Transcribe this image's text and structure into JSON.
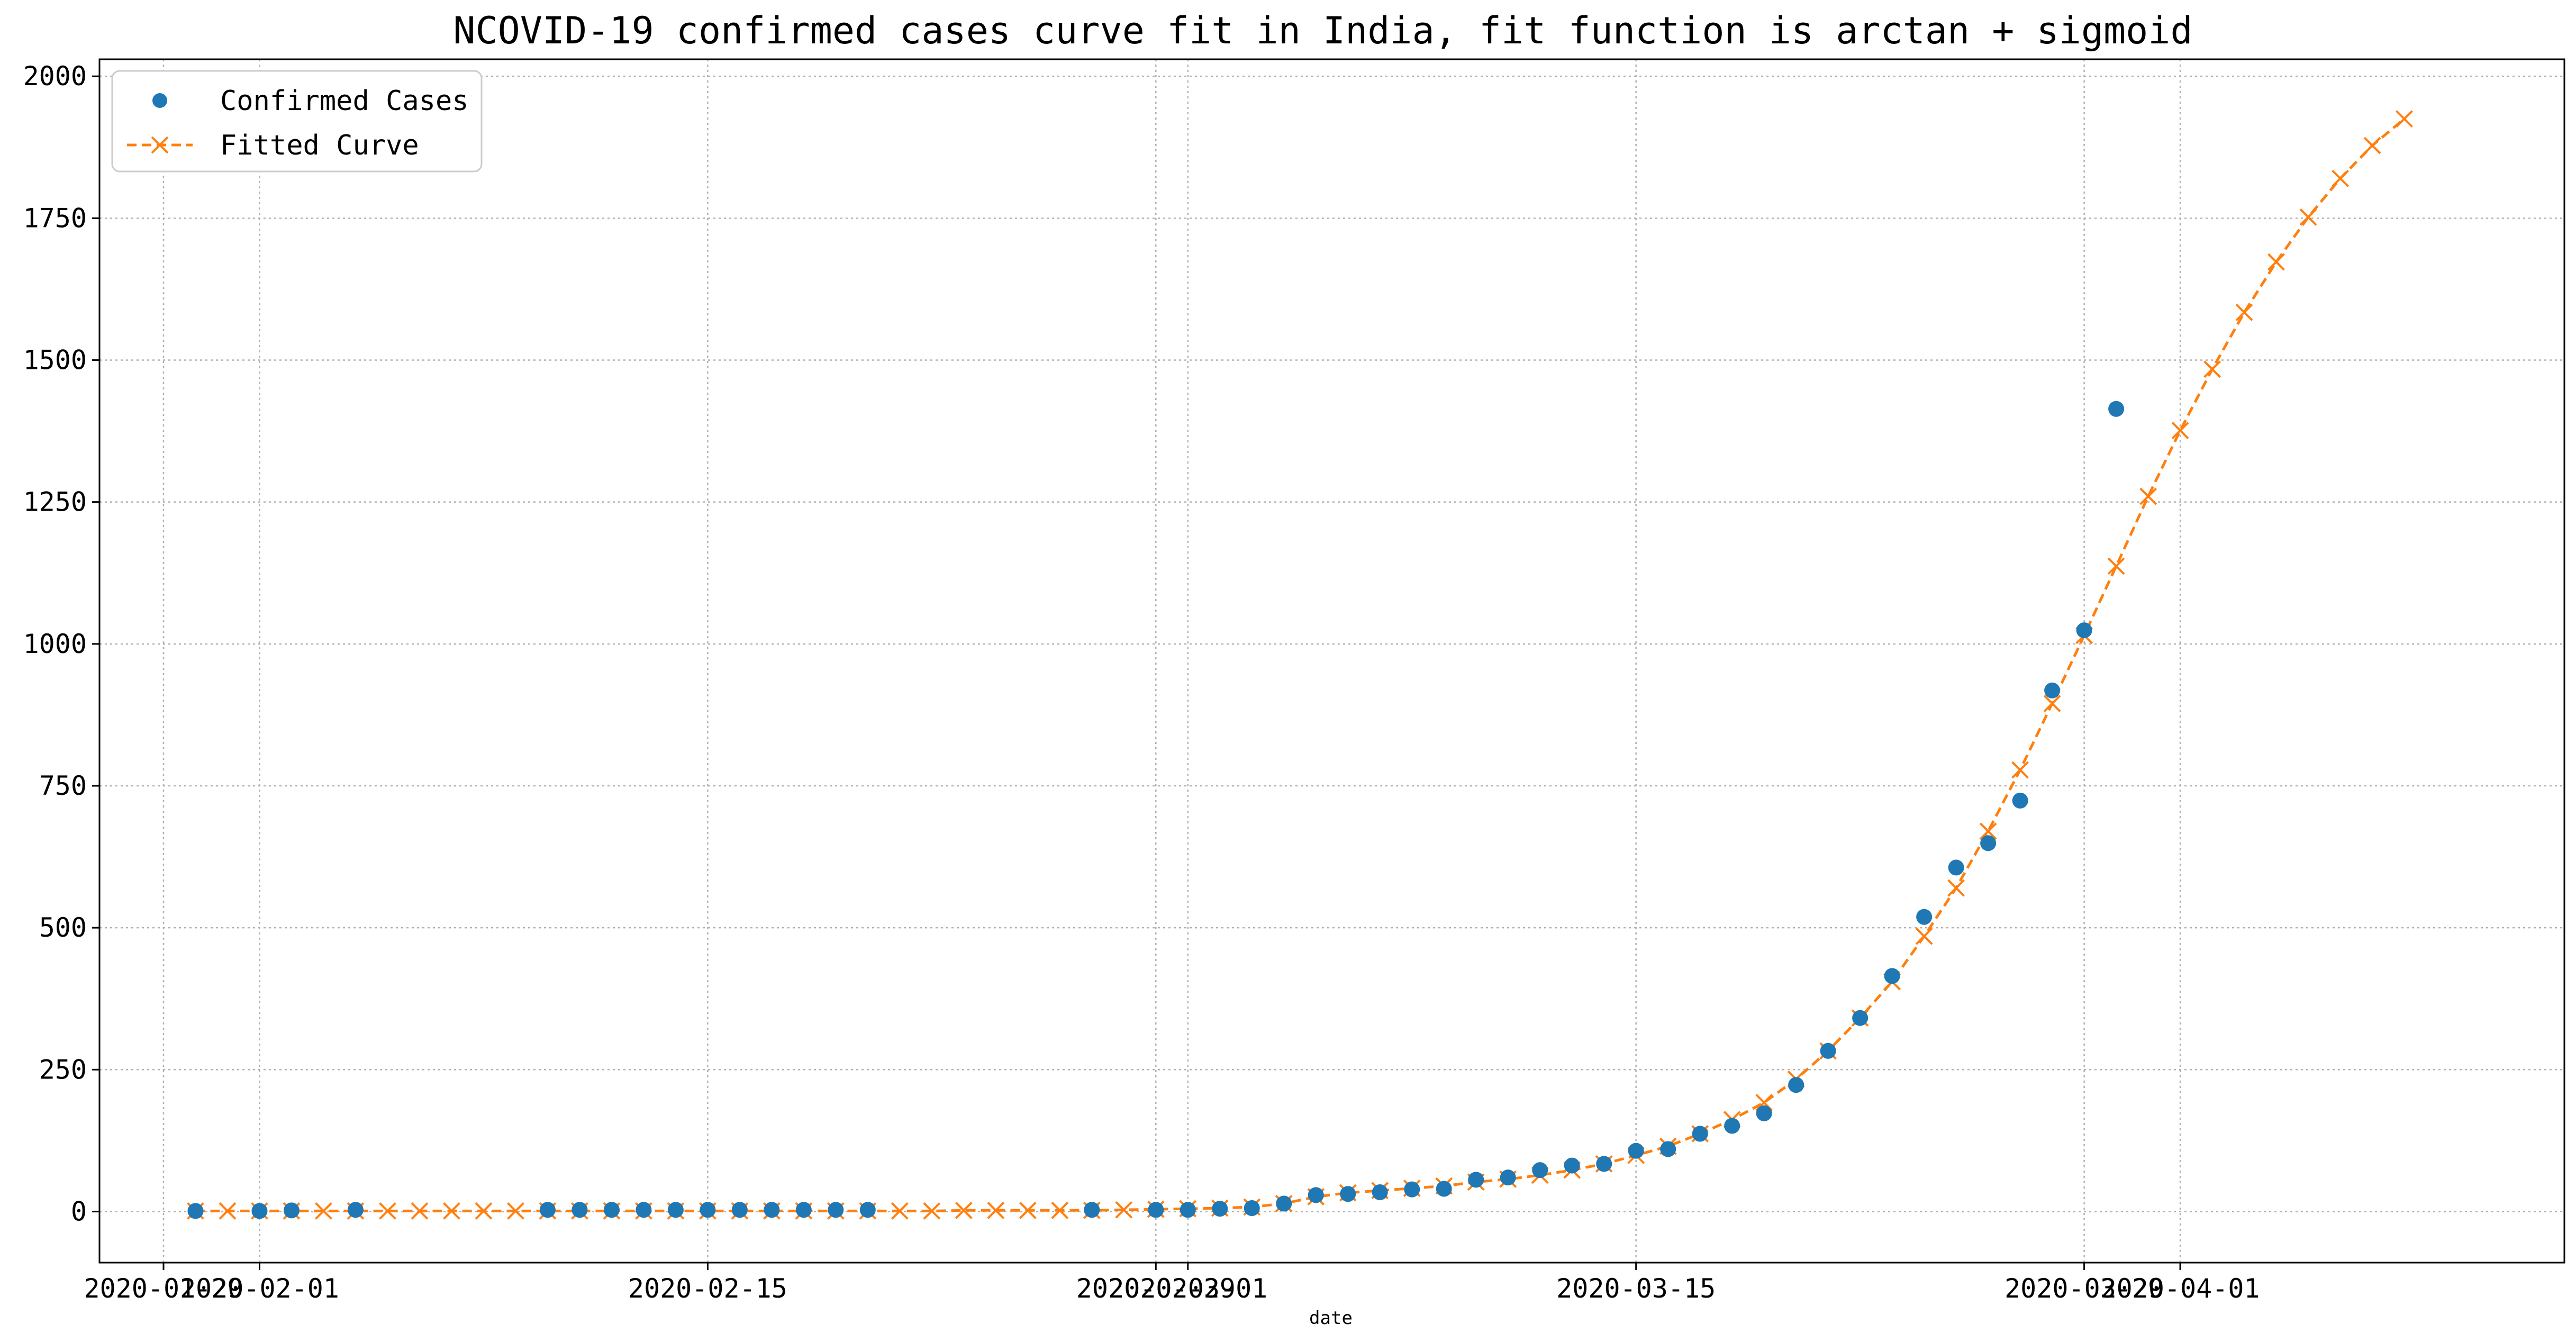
{
  "chart_data": {
    "type": "line",
    "title": "NCOVID-19 confirmed cases curve fit in India, fit function is arctan + sigmoid",
    "xlabel": "date",
    "ylabel": "",
    "ylim": [
      -90,
      2030
    ],
    "xlim": [
      "2020-01-27",
      "2020-04-13"
    ],
    "grid": true,
    "legend_position": "upper-left",
    "x_ticks": [
      {
        "date": "2020-01-29",
        "label": "2020-01-29"
      },
      {
        "date": "2020-02-01",
        "label": "2020-02-01"
      },
      {
        "date": "2020-02-15",
        "label": "2020-02-15"
      },
      {
        "date": "2020-02-29",
        "label": "2020-02-29"
      },
      {
        "date": "2020-03-01",
        "label": "2020-03-01"
      },
      {
        "date": "2020-03-15",
        "label": "2020-03-15"
      },
      {
        "date": "2020-03-29",
        "label": "2020-03-29"
      },
      {
        "date": "2020-04-01",
        "label": "2020-04-01"
      }
    ],
    "y_ticks": [
      0,
      250,
      500,
      750,
      1000,
      1250,
      1500,
      1750,
      2000
    ],
    "series": [
      {
        "name": "Confirmed Cases",
        "style": "markers",
        "color": "#1f77b4",
        "points": [
          [
            "2020-01-30",
            1
          ],
          [
            "2020-02-01",
            1
          ],
          [
            "2020-02-02",
            2
          ],
          [
            "2020-02-04",
            3
          ],
          [
            "2020-02-10",
            3
          ],
          [
            "2020-02-11",
            3
          ],
          [
            "2020-02-12",
            3
          ],
          [
            "2020-02-13",
            3
          ],
          [
            "2020-02-14",
            3
          ],
          [
            "2020-02-15",
            3
          ],
          [
            "2020-02-16",
            3
          ],
          [
            "2020-02-17",
            3
          ],
          [
            "2020-02-18",
            3
          ],
          [
            "2020-02-19",
            3
          ],
          [
            "2020-02-20",
            3
          ],
          [
            "2020-02-27",
            3
          ],
          [
            "2020-02-29",
            3
          ],
          [
            "2020-03-01",
            3
          ],
          [
            "2020-03-02",
            5
          ],
          [
            "2020-03-03",
            6
          ],
          [
            "2020-03-04",
            14
          ],
          [
            "2020-03-05",
            29
          ],
          [
            "2020-03-06",
            31
          ],
          [
            "2020-03-07",
            34
          ],
          [
            "2020-03-08",
            39
          ],
          [
            "2020-03-09",
            40
          ],
          [
            "2020-03-10",
            56
          ],
          [
            "2020-03-11",
            60
          ],
          [
            "2020-03-12",
            73
          ],
          [
            "2020-03-13",
            81
          ],
          [
            "2020-03-14",
            84
          ],
          [
            "2020-03-15",
            107
          ],
          [
            "2020-03-16",
            110
          ],
          [
            "2020-03-17",
            137
          ],
          [
            "2020-03-18",
            151
          ],
          [
            "2020-03-19",
            173
          ],
          [
            "2020-03-20",
            223
          ],
          [
            "2020-03-21",
            283
          ],
          [
            "2020-03-22",
            341
          ],
          [
            "2020-03-23",
            415
          ],
          [
            "2020-03-24",
            519
          ],
          [
            "2020-03-25",
            606
          ],
          [
            "2020-03-26",
            649
          ],
          [
            "2020-03-27",
            724
          ],
          [
            "2020-03-28",
            918
          ],
          [
            "2020-03-29",
            1024
          ],
          [
            "2020-03-30",
            1414
          ]
        ]
      },
      {
        "name": "Fitted Curve",
        "style": "dashed-line-x-markers",
        "color": "#ff7f0e",
        "points": [
          [
            "2020-01-30",
            1
          ],
          [
            "2020-01-31",
            1
          ],
          [
            "2020-02-01",
            1
          ],
          [
            "2020-02-02",
            1
          ],
          [
            "2020-02-03",
            1
          ],
          [
            "2020-02-04",
            1
          ],
          [
            "2020-02-05",
            1
          ],
          [
            "2020-02-06",
            1
          ],
          [
            "2020-02-07",
            1
          ],
          [
            "2020-02-08",
            1
          ],
          [
            "2020-02-09",
            1
          ],
          [
            "2020-02-10",
            1
          ],
          [
            "2020-02-11",
            1
          ],
          [
            "2020-02-12",
            1
          ],
          [
            "2020-02-13",
            1
          ],
          [
            "2020-02-14",
            1
          ],
          [
            "2020-02-15",
            1
          ],
          [
            "2020-02-16",
            1
          ],
          [
            "2020-02-17",
            1
          ],
          [
            "2020-02-18",
            1
          ],
          [
            "2020-02-19",
            1
          ],
          [
            "2020-02-20",
            1
          ],
          [
            "2020-02-21",
            1
          ],
          [
            "2020-02-22",
            1
          ],
          [
            "2020-02-23",
            2
          ],
          [
            "2020-02-24",
            2
          ],
          [
            "2020-02-25",
            2
          ],
          [
            "2020-02-26",
            2
          ],
          [
            "2020-02-27",
            2
          ],
          [
            "2020-02-28",
            3
          ],
          [
            "2020-02-29",
            4
          ],
          [
            "2020-03-01",
            5
          ],
          [
            "2020-03-02",
            6
          ],
          [
            "2020-03-03",
            8
          ],
          [
            "2020-03-04",
            14
          ],
          [
            "2020-03-05",
            26
          ],
          [
            "2020-03-06",
            33
          ],
          [
            "2020-03-07",
            37
          ],
          [
            "2020-03-08",
            41
          ],
          [
            "2020-03-09",
            45
          ],
          [
            "2020-03-10",
            52
          ],
          [
            "2020-03-11",
            57
          ],
          [
            "2020-03-12",
            64
          ],
          [
            "2020-03-13",
            73
          ],
          [
            "2020-03-14",
            84
          ],
          [
            "2020-03-15",
            99
          ],
          [
            "2020-03-16",
            115
          ],
          [
            "2020-03-17",
            137
          ],
          [
            "2020-03-18",
            162
          ],
          [
            "2020-03-19",
            192
          ],
          [
            "2020-03-20",
            233
          ],
          [
            "2020-03-21",
            283
          ],
          [
            "2020-03-22",
            341
          ],
          [
            "2020-03-23",
            405
          ],
          [
            "2020-03-24",
            485
          ],
          [
            "2020-03-25",
            570
          ],
          [
            "2020-03-26",
            670
          ],
          [
            "2020-03-27",
            778
          ],
          [
            "2020-03-28",
            895
          ],
          [
            "2020-03-29",
            1015
          ],
          [
            "2020-03-30",
            1137
          ],
          [
            "2020-03-31",
            1260
          ],
          [
            "2020-04-01",
            1376
          ],
          [
            "2020-04-02",
            1484
          ],
          [
            "2020-04-03",
            1584
          ],
          [
            "2020-04-04",
            1673
          ],
          [
            "2020-04-05",
            1752
          ],
          [
            "2020-04-06",
            1820
          ],
          [
            "2020-04-07",
            1878
          ],
          [
            "2020-04-08",
            1925
          ]
        ]
      }
    ]
  }
}
